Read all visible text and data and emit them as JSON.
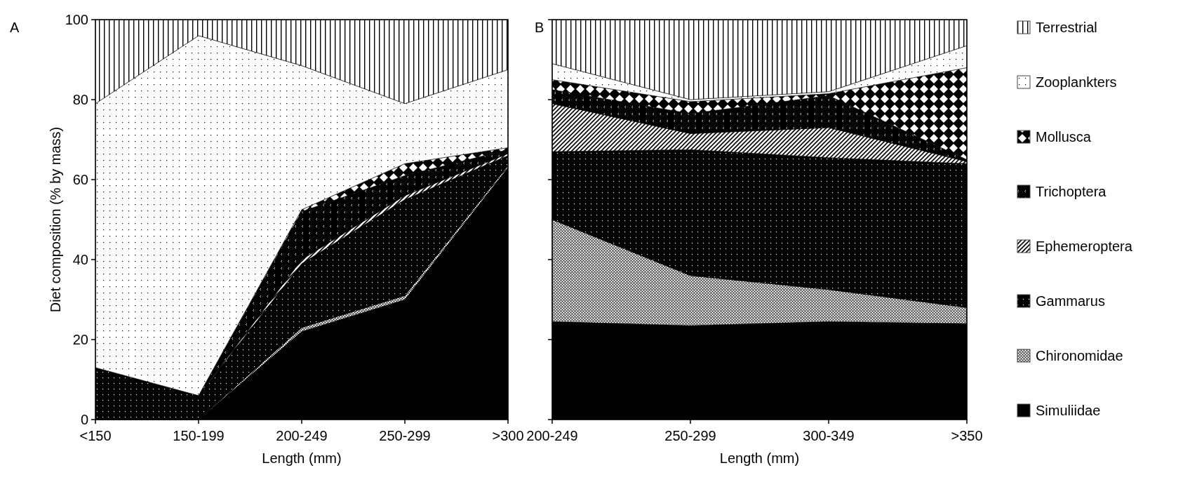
{
  "chart_data": [
    {
      "type": "area",
      "title": "A",
      "stacked": true,
      "categories": [
        "<150",
        "150-199",
        "200-249",
        "250-299",
        ">300"
      ],
      "xlabel": "Length (mm)",
      "ylabel": "Diet composition (% by mass)",
      "ylim": [
        0,
        100
      ],
      "yticks": [
        0,
        20,
        40,
        60,
        80,
        100
      ],
      "series": [
        {
          "color": "#000000",
          "values": [
            0,
            0,
            22,
            30,
            63
          ]
        },
        {
          "color": "#000000",
          "values": [
            0,
            0,
            1,
            1,
            0.5
          ]
        },
        {
          "color": "#000000",
          "values": [
            13,
            6,
            16,
            24,
            2.5
          ]
        },
        {
          "color": "#000000",
          "values": [
            0,
            0,
            1,
            1,
            0.5
          ]
        },
        {
          "color": "#000000",
          "values": [
            0,
            0,
            12,
            5,
            1
          ]
        },
        {
          "color": "#000000",
          "values": [
            0,
            0,
            0.5,
            3,
            0.5
          ]
        },
        {
          "color": "#000000",
          "values": [
            66,
            90,
            36,
            15,
            19.5
          ]
        },
        {
          "color": "#000000",
          "values": [
            21,
            4,
            11.5,
            21,
            12.5
          ]
        }
      ]
    },
    {
      "type": "area",
      "title": "B",
      "stacked": true,
      "categories": [
        "200-249",
        "250-299",
        "300-349",
        ">350"
      ],
      "xlabel": "Length (mm)",
      "ylim": [
        0,
        100
      ],
      "yticks": [
        0,
        20,
        40,
        60,
        80,
        100
      ],
      "tick_labels": "x",
      "legend": "right",
      "series": [
        {
          "name": "Simuliidae",
          "color": "#000000",
          "values": [
            24.5,
            23.5,
            24.5,
            24
          ]
        },
        {
          "name": "Chironomidae",
          "color": "#000000",
          "values": [
            25.5,
            12.5,
            8,
            4
          ]
        },
        {
          "name": "Gammarus",
          "color": "#000000",
          "values": [
            17,
            31.5,
            33,
            36
          ]
        },
        {
          "name": "Ephemeroptera",
          "color": "#000000",
          "values": [
            12,
            4,
            7.5,
            0.5
          ]
        },
        {
          "name": "Trichoptera",
          "color": "#000000",
          "values": [
            3.5,
            5,
            8,
            0.5
          ]
        },
        {
          "name": "Mollusca",
          "color": "#000000",
          "values": [
            2.5,
            3,
            0.5,
            23
          ]
        },
        {
          "name": "Zooplankters",
          "color": "#000000",
          "values": [
            4,
            0.5,
            0.5,
            5.5
          ]
        },
        {
          "name": "Terrestrial",
          "color": "#000000",
          "values": [
            11,
            20,
            18,
            6.5
          ]
        }
      ]
    }
  ]
}
